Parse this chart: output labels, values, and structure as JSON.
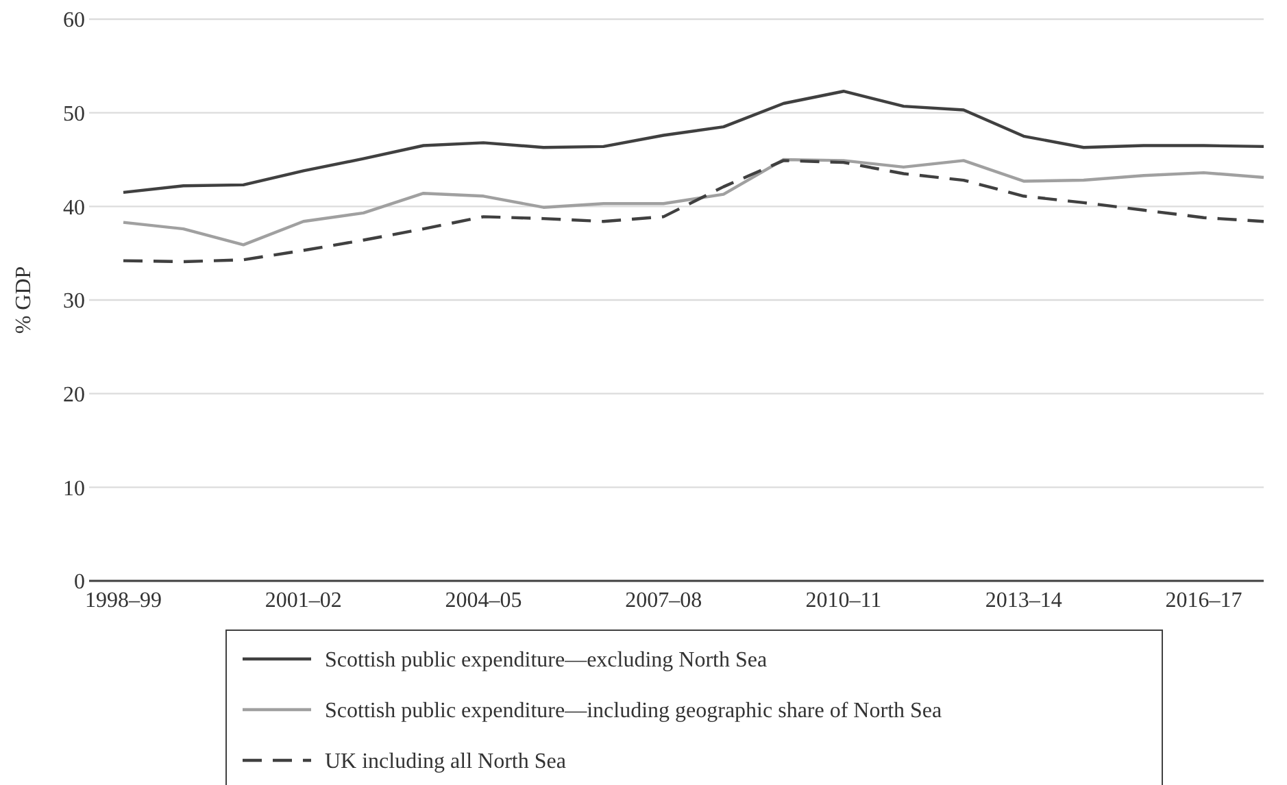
{
  "chart_data": {
    "type": "line",
    "ylabel": "% GDP",
    "categories": [
      "1998–99",
      null,
      null,
      "2001–02",
      null,
      null,
      "2004–05",
      null,
      null,
      "2007–08",
      null,
      null,
      "2010–11",
      null,
      null,
      "2013–14",
      null,
      null,
      "2016–17",
      null
    ],
    "ylim": [
      0,
      60
    ],
    "yticks": [
      0,
      10,
      20,
      30,
      40,
      50,
      60
    ],
    "grid": "y",
    "legend": "bottom",
    "marker": "none",
    "series": [
      {
        "name": "Scottish public expenditure—excluding North Sea",
        "color": "#404040",
        "line_style": "solid",
        "values": [
          41.5,
          42.2,
          42.3,
          43.8,
          45.1,
          46.5,
          46.8,
          46.3,
          46.4,
          47.6,
          48.5,
          51.0,
          52.3,
          50.7,
          50.3,
          47.5,
          46.3,
          46.5,
          46.5,
          46.4
        ]
      },
      {
        "name": "Scottish public expenditure—including geographic share of North Sea",
        "color": "#a0a0a0",
        "line_style": "solid",
        "values": [
          38.3,
          37.6,
          35.9,
          38.4,
          39.3,
          41.4,
          41.1,
          39.9,
          40.3,
          40.3,
          41.3,
          45.0,
          44.9,
          44.2,
          44.9,
          42.7,
          42.8,
          43.3,
          43.6,
          43.1
        ]
      },
      {
        "name": "UK including all North Sea",
        "color": "#404040",
        "line_style": "dashed",
        "values": [
          34.2,
          34.1,
          34.3,
          35.3,
          36.4,
          37.6,
          38.9,
          38.7,
          38.4,
          38.9,
          42.1,
          44.9,
          44.7,
          43.5,
          42.8,
          41.1,
          40.4,
          39.6,
          38.8,
          38.4
        ]
      }
    ]
  }
}
